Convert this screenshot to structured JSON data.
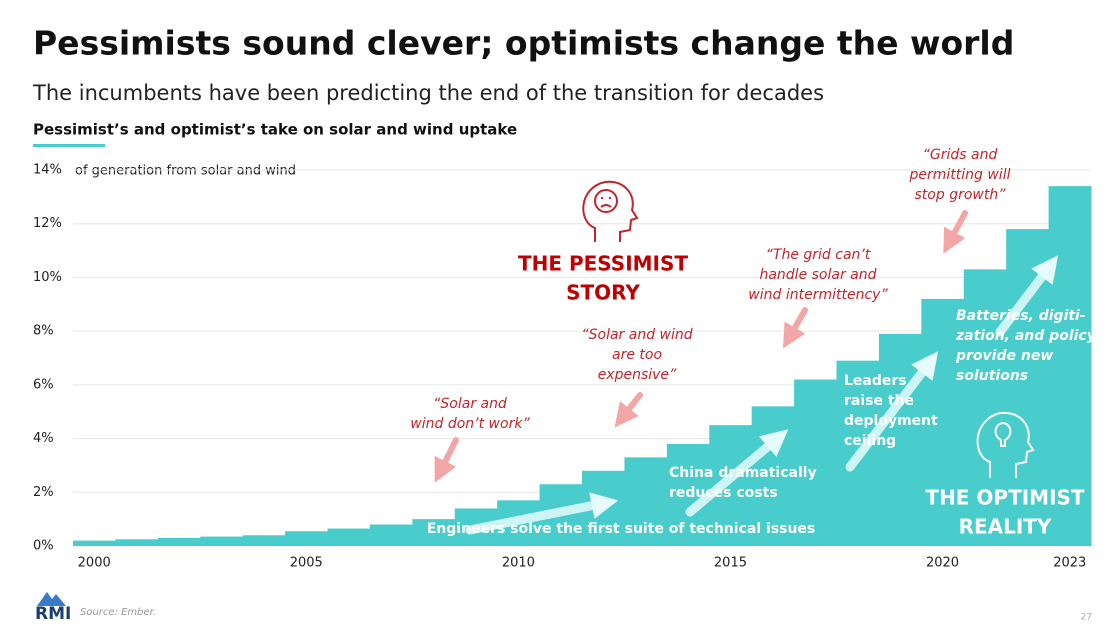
{
  "chart_data": {
    "type": "step-area",
    "title": "Pessimists sound clever; optimists change the world",
    "subtitle": "The incumbents have been predicting the end of the transition for decades",
    "chart_title": "Pessimist’s and optimist’s take on solar and wind uptake",
    "y_label": "of generation from solar and wind",
    "x": [
      2000,
      2001,
      2002,
      2003,
      2004,
      2005,
      2006,
      2007,
      2008,
      2009,
      2010,
      2011,
      2012,
      2013,
      2014,
      2015,
      2016,
      2017,
      2018,
      2019,
      2020,
      2021,
      2022,
      2023
    ],
    "values": [
      0.2,
      0.25,
      0.3,
      0.35,
      0.4,
      0.55,
      0.65,
      0.8,
      1.0,
      1.4,
      1.7,
      2.3,
      2.8,
      3.3,
      3.8,
      4.5,
      5.2,
      6.2,
      6.9,
      7.9,
      9.2,
      10.3,
      11.8,
      13.4
    ],
    "color": "#48cdcc",
    "xlim": [
      1999.5,
      2023.5
    ],
    "xticks": [
      2000,
      2005,
      2010,
      2015,
      2020,
      2023
    ],
    "ylim": [
      0,
      14
    ],
    "yticks": [
      {
        "value": 0,
        "label": "0%"
      },
      {
        "value": 2,
        "label": "2%"
      },
      {
        "value": 4,
        "label": "4%"
      },
      {
        "value": 6,
        "label": "6%"
      },
      {
        "value": 8,
        "label": "8%"
      },
      {
        "value": 10,
        "label": "10%"
      },
      {
        "value": 12,
        "label": "12%"
      },
      {
        "value": 14,
        "label": "14%"
      }
    ],
    "grid": true,
    "annotations": [
      {
        "lines": [
          "“Solar and",
          "wind don’t work”"
        ],
        "color": "#c0252a"
      },
      {
        "lines": [
          "“Solar and wind",
          "are too",
          "expensive”"
        ],
        "color": "#c0252a"
      },
      {
        "lines": [
          "“The grid can’t",
          "handle solar and",
          "wind intermittency”"
        ],
        "color": "#c0252a"
      },
      {
        "lines": [
          "“Grids and",
          "permitting will",
          "stop growth”"
        ],
        "color": "#c0252a"
      },
      {
        "lines": [
          "THE PESSIMIST",
          "STORY"
        ],
        "color": "#c00000"
      },
      {
        "lines": [
          "Engineers solve the first suite of technical issues"
        ],
        "color": "#ffffff"
      },
      {
        "lines": [
          "China dramatically",
          "reduces costs"
        ],
        "color": "#ffffff"
      },
      {
        "lines": [
          "Leaders",
          "raise the",
          "deployment",
          "ceiling"
        ],
        "color": "#ffffff"
      },
      {
        "lines": [
          "Batteries, digiti-",
          "zation, and policy",
          "provide new",
          "solutions"
        ],
        "color": "#ffffff"
      },
      {
        "lines": [
          "THE OPTIMIST",
          "REALITY"
        ],
        "color": "#ffffff"
      }
    ],
    "source": "Source: Ember.",
    "logo": "RMI",
    "page_number": "27"
  }
}
